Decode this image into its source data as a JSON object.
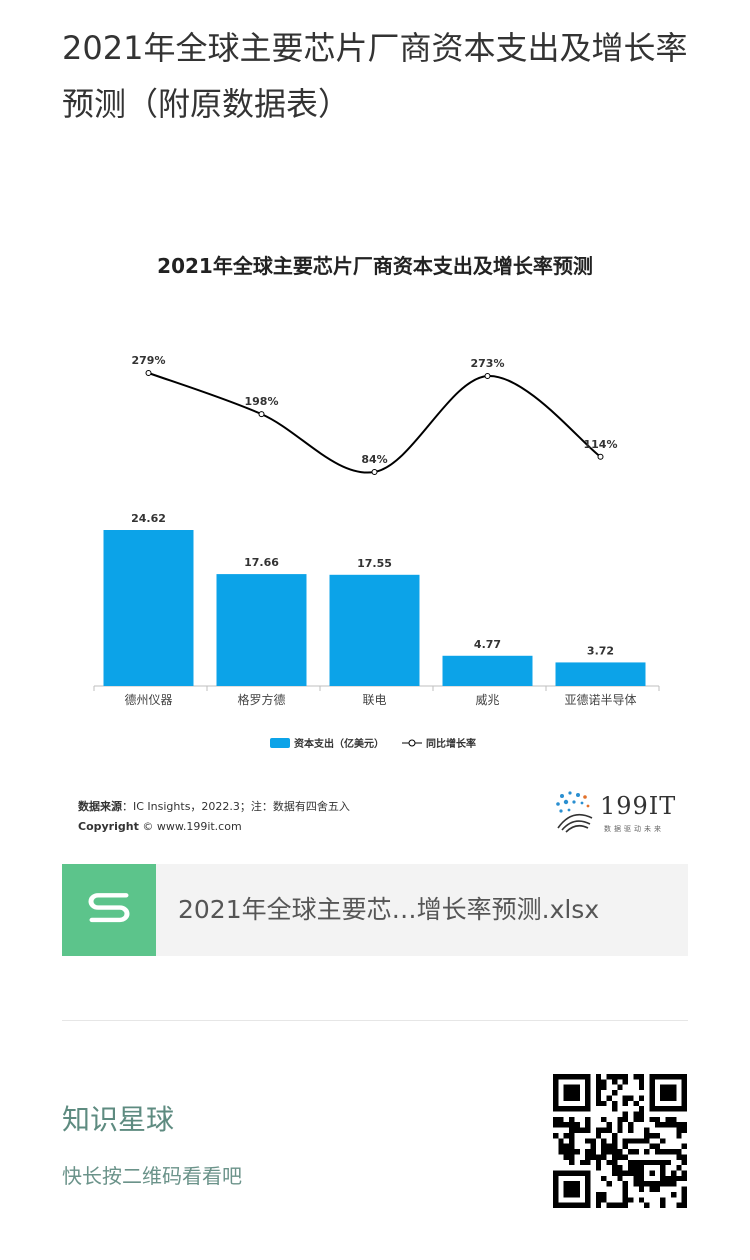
{
  "article": {
    "title": "2021年全球主要芯片厂商资本支出及增长率预测（附原数据表）"
  },
  "chart_data": {
    "type": "bar",
    "title": "2021年全球主要芯片厂商资本支出及增长率预测",
    "categories": [
      "德州仪器",
      "格罗方德",
      "联电",
      "威兆",
      "亚德诺半导体"
    ],
    "series": [
      {
        "name": "资本支出（亿美元）",
        "type": "bar",
        "values": [
          24.62,
          17.66,
          17.55,
          4.77,
          3.72
        ],
        "color": "#0ca3e8"
      },
      {
        "name": "同比增长率",
        "type": "line",
        "values": [
          279,
          198,
          84,
          273,
          114
        ],
        "labels": [
          "279%",
          "198%",
          "84%",
          "273%",
          "114%"
        ],
        "color": "#000000"
      }
    ],
    "legend_position": "bottom",
    "grid": false
  },
  "source": {
    "label": "数据来源",
    "text": "：IC Insights，2022.3；注：数据有四舍五入",
    "copyright_label": "Copyright",
    "copyright_text": "© www.199it.com"
  },
  "logo": {
    "text": "199IT",
    "slogan": "数据驱动未来"
  },
  "file": {
    "name": "2021年全球主要芯…增长率预测.xlsx",
    "icon": "spreadsheet-icon",
    "color": "#5cc48b"
  },
  "promo": {
    "title": "知识星球",
    "subtitle": "快长按二维码看看吧"
  }
}
